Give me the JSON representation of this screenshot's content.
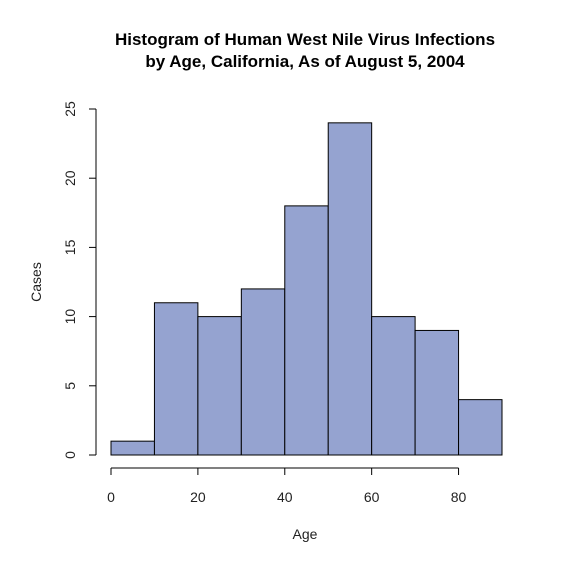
{
  "chart_data": {
    "type": "bar",
    "title": "Histogram of Human West Nile Virus Infections",
    "subtitle": "by Age, California, As of August 5, 2004",
    "xlabel": "Age",
    "ylabel": "Cases",
    "bins": [
      {
        "start": 0,
        "end": 10,
        "value": 1
      },
      {
        "start": 10,
        "end": 20,
        "value": 11
      },
      {
        "start": 20,
        "end": 30,
        "value": 10
      },
      {
        "start": 30,
        "end": 40,
        "value": 12
      },
      {
        "start": 40,
        "end": 50,
        "value": 18
      },
      {
        "start": 50,
        "end": 60,
        "value": 24
      },
      {
        "start": 60,
        "end": 70,
        "value": 10
      },
      {
        "start": 70,
        "end": 80,
        "value": 9
      },
      {
        "start": 80,
        "end": 90,
        "value": 4
      }
    ],
    "xlim": [
      0,
      90
    ],
    "ylim": [
      0,
      25
    ],
    "x_ticks": [
      "0",
      "20",
      "40",
      "60",
      "80"
    ],
    "y_ticks": [
      "0",
      "5",
      "10",
      "15",
      "20",
      "25"
    ],
    "bar_color": "#95a3d0",
    "bar_edge_color": "#000000",
    "grid": false,
    "legend": "none"
  }
}
